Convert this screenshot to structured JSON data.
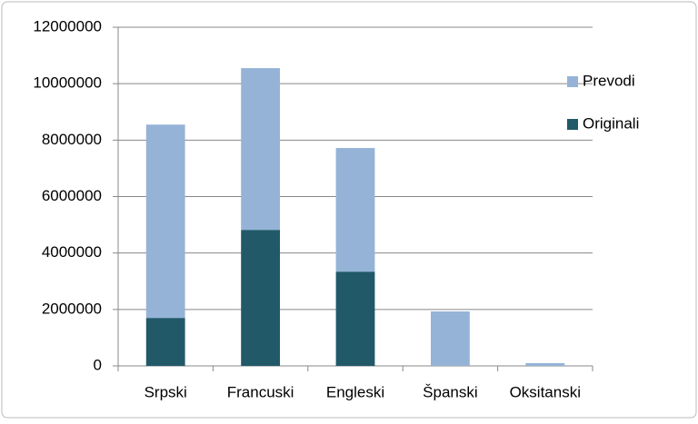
{
  "chart_data": {
    "type": "stacked_bar",
    "categories": [
      "Srpski",
      "Francuski",
      "Engleski",
      "Španski",
      "Oksitanski"
    ],
    "series": [
      {
        "name": "Originali",
        "color": "#215968",
        "values": [
          1700000,
          4820000,
          3340000,
          0,
          0
        ]
      },
      {
        "name": "Prevodi",
        "color": "#95b3d7",
        "values": [
          6850000,
          5730000,
          4380000,
          1930000,
          100000
        ]
      }
    ],
    "ylim": [
      0,
      12000000
    ],
    "yticks": [
      0,
      2000000,
      4000000,
      6000000,
      8000000,
      10000000,
      12000000
    ],
    "grid": true,
    "legend": "right"
  }
}
